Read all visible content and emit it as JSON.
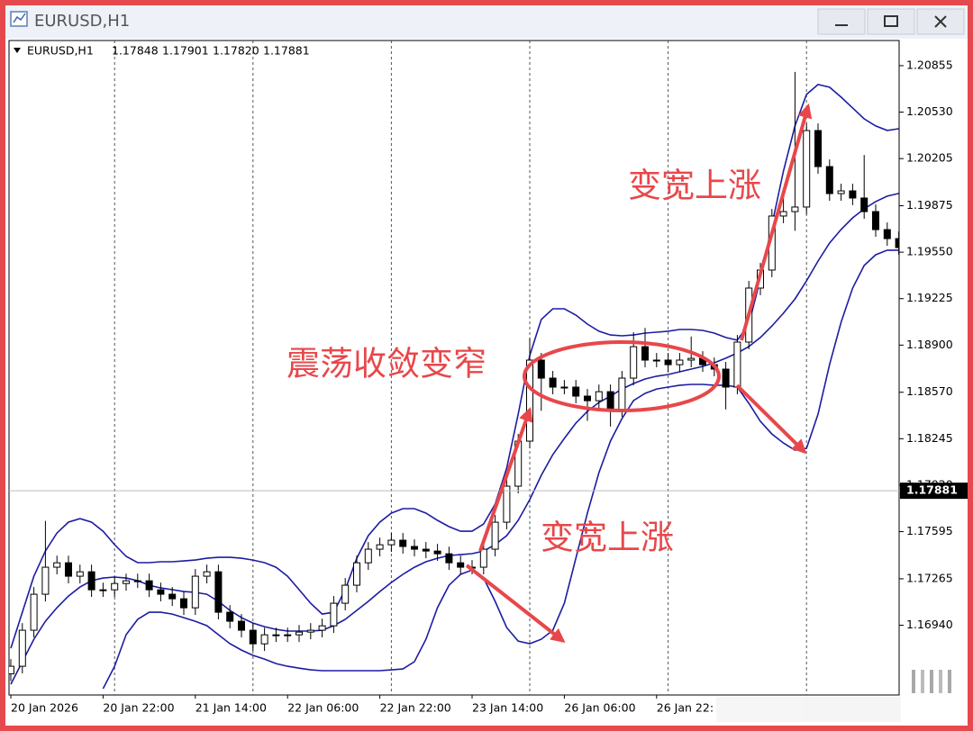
{
  "window": {
    "title": "EURUSD,H1"
  },
  "chart_data": {
    "type": "candlestick",
    "title": "EURUSD,H1",
    "quote": [
      "1.17848",
      "1.17901",
      "1.17820",
      "1.17881"
    ],
    "categories": [
      "20 Jan 2026",
      null,
      null,
      null,
      null,
      null,
      null,
      null,
      "20 Jan 22:00",
      null,
      null,
      null,
      null,
      null,
      null,
      null,
      "21 Jan 14:00",
      null,
      null,
      null,
      null,
      null,
      null,
      null,
      "22 Jan 06:00",
      null,
      null,
      null,
      null,
      null,
      null,
      null,
      "22 Jan 22:00",
      null,
      null,
      null,
      null,
      null,
      null,
      null,
      "23 Jan 14:00",
      null,
      null,
      null,
      null,
      null,
      null,
      null,
      "26 Jan 06:00",
      null,
      null,
      null,
      null,
      null,
      null,
      null,
      "26 Jan 22:",
      null,
      null,
      null,
      null,
      null,
      null,
      null,
      null,
      null,
      null,
      null,
      null,
      null,
      null,
      null,
      null,
      null,
      null,
      null,
      null,
      null
    ],
    "open": [
      1.166,
      1.16653,
      1.16905,
      1.17157,
      1.17346,
      1.17377,
      1.17283,
      1.17314,
      1.17188,
      1.17188,
      1.17232,
      1.17251,
      1.17251,
      1.17188,
      1.17157,
      1.17125,
      1.17062,
      1.17283,
      1.17314,
      1.17031,
      1.16968,
      1.16905,
      1.1681,
      1.16873,
      1.16873,
      1.16873,
      1.16892,
      1.16905,
      1.16936,
      1.17094,
      1.1722,
      1.17377,
      1.17472,
      1.17503,
      1.17535,
      1.17491,
      1.17472,
      1.17459,
      1.1744,
      1.17377,
      1.17346,
      1.17346,
      1.17472,
      1.17661,
      1.17913,
      1.18228,
      1.18795,
      1.18669,
      1.18606,
      1.18606,
      1.18543,
      1.18511,
      1.18574,
      1.18448,
      1.18669,
      1.18889,
      1.18795,
      1.18795,
      1.18763,
      1.18795,
      1.18807,
      1.18763,
      1.18732,
      1.18606,
      1.18921,
      1.19299,
      1.19425,
      1.19803,
      1.19834,
      1.19866,
      1.20401,
      1.20149,
      1.1996,
      1.19979,
      1.19929,
      1.19834,
      1.19708,
      1.19645
    ],
    "high": [
      1.16703,
      1.16955,
      1.17207,
      1.1767,
      1.17427,
      1.17427,
      1.17364,
      1.17364,
      1.17238,
      1.17282,
      1.17301,
      1.17301,
      1.17301,
      1.17238,
      1.17207,
      1.17175,
      1.17333,
      1.17364,
      1.17364,
      1.17081,
      1.17018,
      1.16955,
      1.16923,
      1.16923,
      1.16923,
      1.16942,
      1.16955,
      1.16986,
      1.17144,
      1.1727,
      1.17427,
      1.17522,
      1.17553,
      1.17585,
      1.17585,
      1.17541,
      1.17522,
      1.17509,
      1.1749,
      1.17427,
      1.17396,
      1.17522,
      1.17711,
      1.17963,
      1.18278,
      1.1895,
      1.18845,
      1.18719,
      1.18656,
      1.18656,
      1.18593,
      1.18624,
      1.18624,
      1.18719,
      1.1899,
      1.1902,
      1.18845,
      1.18845,
      1.18845,
      1.1896,
      1.18857,
      1.18813,
      1.18782,
      1.18971,
      1.19349,
      1.19475,
      1.19853,
      1.1995,
      1.20811,
      1.20451,
      1.20451,
      1.20199,
      1.20029,
      1.20029,
      1.2023,
      1.19884,
      1.19758,
      1.19695
    ],
    "low": [
      1.1655,
      1.16603,
      1.16855,
      1.17107,
      1.17296,
      1.17233,
      1.17233,
      1.17138,
      1.17138,
      1.17138,
      1.17182,
      1.17201,
      1.17138,
      1.17107,
      1.17075,
      1.17012,
      1.17012,
      1.17233,
      1.16981,
      1.16918,
      1.16855,
      1.1676,
      1.1676,
      1.16823,
      1.16823,
      1.16823,
      1.16842,
      1.16855,
      1.16886,
      1.17044,
      1.1717,
      1.17327,
      1.17422,
      1.17453,
      1.17441,
      1.17422,
      1.17409,
      1.1739,
      1.17327,
      1.17296,
      1.17296,
      1.17296,
      1.17422,
      1.17611,
      1.17863,
      1.18178,
      1.1844,
      1.18556,
      1.18556,
      1.18493,
      1.1837,
      1.18461,
      1.1833,
      1.18398,
      1.18619,
      1.18745,
      1.18745,
      1.18713,
      1.18713,
      1.18745,
      1.18713,
      1.18682,
      1.1845,
      1.18556,
      1.18871,
      1.19249,
      1.19375,
      1.19753,
      1.197,
      1.19816,
      1.20099,
      1.1991,
      1.1991,
      1.19879,
      1.19784,
      1.19658,
      1.19595,
      1.19532
    ],
    "close": [
      1.16653,
      1.16905,
      1.17157,
      1.17346,
      1.17377,
      1.17283,
      1.17314,
      1.17188,
      1.17188,
      1.17232,
      1.17251,
      1.17251,
      1.17188,
      1.17157,
      1.17125,
      1.17062,
      1.17283,
      1.17314,
      1.17031,
      1.16968,
      1.16905,
      1.1681,
      1.16873,
      1.16873,
      1.16873,
      1.16892,
      1.16905,
      1.16936,
      1.17094,
      1.1722,
      1.17377,
      1.17472,
      1.17503,
      1.17535,
      1.17491,
      1.17472,
      1.17459,
      1.1744,
      1.17377,
      1.17346,
      1.17346,
      1.17472,
      1.17661,
      1.17913,
      1.18228,
      1.18795,
      1.18669,
      1.18606,
      1.18606,
      1.18543,
      1.18511,
      1.18574,
      1.18448,
      1.18669,
      1.18889,
      1.18795,
      1.18795,
      1.18763,
      1.18795,
      1.18807,
      1.18763,
      1.18732,
      1.18606,
      1.18921,
      1.19299,
      1.19425,
      1.19803,
      1.19834,
      1.19866,
      1.20401,
      1.20149,
      1.1996,
      1.19979,
      1.19929,
      1.19834,
      1.19708,
      1.19645,
      1.19582
    ],
    "up_color": "#ffffff",
    "down_color": "#000000",
    "series": [
      {
        "color": "#1c1ca3",
        "values": [
          1.16779,
          1.17031,
          1.17283,
          1.17459,
          1.17585,
          1.17661,
          1.17686,
          1.17661,
          1.17598,
          1.17504,
          1.17422,
          1.17378,
          1.17378,
          1.17384,
          1.17384,
          1.1739,
          1.17396,
          1.17409,
          1.17415,
          1.17415,
          1.17409,
          1.17396,
          1.17378,
          1.17346,
          1.17283,
          1.17189,
          1.17094,
          1.17018,
          1.17031,
          1.17189,
          1.17409,
          1.17567,
          1.17661,
          1.17724,
          1.17756,
          1.17756,
          1.17724,
          1.17674,
          1.1763,
          1.17598,
          1.17598,
          1.17648,
          1.17787,
          1.18039,
          1.18417,
          1.18827,
          1.19079,
          1.19154,
          1.19154,
          1.1911,
          1.19047,
          1.18997,
          1.18971,
          1.18965,
          1.18971,
          1.18984,
          1.1899,
          1.18997,
          1.19009,
          1.19009,
          1.19003,
          1.18984,
          1.18953,
          1.18934,
          1.19047,
          1.19362,
          1.1974,
          1.20118,
          1.20433,
          1.20654,
          1.20723,
          1.20704,
          1.20635,
          1.20559,
          1.20483,
          1.20433,
          1.20402,
          1.20414
        ]
      },
      {
        "color": "#1c1ca3",
        "values": [
          1.16527,
          1.16685,
          1.16842,
          1.16968,
          1.17063,
          1.17144,
          1.17207,
          1.17252,
          1.1727,
          1.17277,
          1.1727,
          1.17252,
          1.1722,
          1.17201,
          1.17189,
          1.17176,
          1.1717,
          1.17157,
          1.17107,
          1.17044,
          1.16993,
          1.16955,
          1.1693,
          1.16911,
          1.16899,
          1.16899,
          1.16899,
          1.16905,
          1.16937,
          1.16981,
          1.17044,
          1.17107,
          1.17176,
          1.17239,
          1.17296,
          1.17346,
          1.17384,
          1.17409,
          1.17428,
          1.17434,
          1.17441,
          1.17459,
          1.17504,
          1.17567,
          1.17674,
          1.17819,
          1.17989,
          1.18134,
          1.18247,
          1.18354,
          1.18436,
          1.18499,
          1.18543,
          1.18593,
          1.18631,
          1.18663,
          1.18682,
          1.18694,
          1.18713,
          1.18732,
          1.18751,
          1.18776,
          1.18808,
          1.18845,
          1.1889,
          1.18953,
          1.19034,
          1.19123,
          1.19223,
          1.19349,
          1.19488,
          1.19614,
          1.19709,
          1.1979,
          1.19853,
          1.19904,
          1.19942,
          1.19961
        ]
      },
      {
        "color": "#1c1ca3",
        "values": [
          null,
          null,
          null,
          null,
          null,
          null,
          null,
          null,
          1.16496,
          1.16653,
          1.16874,
          1.16981,
          1.17031,
          1.17031,
          1.17018,
          1.16993,
          1.16968,
          1.16937,
          1.16874,
          1.16811,
          1.16766,
          1.16729,
          1.16703,
          1.16672,
          1.16653,
          1.1664,
          1.16628,
          1.16622,
          1.16622,
          1.16622,
          1.16622,
          1.16622,
          1.16622,
          1.16628,
          1.16634,
          1.16685,
          1.16842,
          1.17063,
          1.1722,
          1.17296,
          1.17327,
          1.1727,
          1.17107,
          1.16924,
          1.16829,
          1.16811,
          1.16842,
          1.16905,
          1.17094,
          1.17409,
          1.17724,
          1.18008,
          1.18228,
          1.18386,
          1.18512,
          1.18562,
          1.18593,
          1.18606,
          1.18619,
          1.18625,
          1.18625,
          1.18619,
          1.18619,
          1.18606,
          1.18493,
          1.18367,
          1.18278,
          1.18215,
          1.18165,
          1.18178,
          1.18417,
          1.18764,
          1.1906,
          1.19299,
          1.19457,
          1.19532,
          1.19564,
          1.19564
        ]
      }
    ],
    "ylim": [
      1.16452,
      1.21031
    ],
    "yticks": [
      {
        "value": 1.20855,
        "label": "1.20855"
      },
      {
        "value": 1.2053,
        "label": "1.20530"
      },
      {
        "value": 1.20205,
        "label": "1.20205"
      },
      {
        "value": 1.19875,
        "label": "1.19875"
      },
      {
        "value": 1.1955,
        "label": "1.19550"
      },
      {
        "value": 1.19225,
        "label": "1.19225"
      },
      {
        "value": 1.189,
        "label": "1.18900"
      },
      {
        "value": 1.1857,
        "label": "1.18570"
      },
      {
        "value": 1.18245,
        "label": "1.18245"
      },
      {
        "value": 1.1792,
        "label": "1.17920"
      },
      {
        "value": 1.17595,
        "label": "1.17595"
      },
      {
        "value": 1.17265,
        "label": "1.17265"
      },
      {
        "value": 1.1694,
        "label": "1.16940"
      }
    ],
    "current_price": {
      "value": 1.17881,
      "label": "1.17881"
    },
    "annotations": [
      "变宽上涨",
      "震荡收敛变窄",
      "变宽上涨"
    ]
  }
}
